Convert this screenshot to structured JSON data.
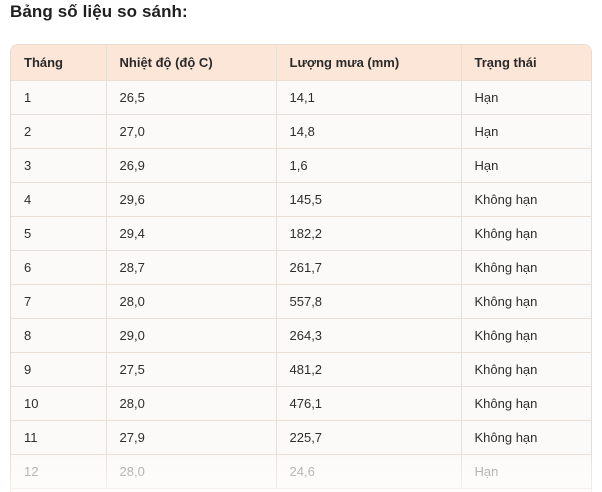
{
  "title": "Bảng số liệu so sánh:",
  "table": {
    "headers": [
      "Tháng",
      "Nhiệt độ (độ C)",
      "Lượng mưa (mm)",
      "Trạng thái"
    ],
    "rows": [
      [
        "1",
        "26,5",
        "14,1",
        "Hạn"
      ],
      [
        "2",
        "27,0",
        "14,8",
        "Hạn"
      ],
      [
        "3",
        "26,9",
        "1,6",
        "Hạn"
      ],
      [
        "4",
        "29,6",
        "145,5",
        "Không hạn"
      ],
      [
        "5",
        "29,4",
        "182,2",
        "Không hạn"
      ],
      [
        "6",
        "28,7",
        "261,7",
        "Không hạn"
      ],
      [
        "7",
        "28,0",
        "557,8",
        "Không hạn"
      ],
      [
        "8",
        "29,0",
        "264,3",
        "Không hạn"
      ],
      [
        "9",
        "27,5",
        "481,2",
        "Không hạn"
      ],
      [
        "10",
        "28,0",
        "476,1",
        "Không hạn"
      ],
      [
        "11",
        "27,9",
        "225,7",
        "Không hạn"
      ],
      [
        "12",
        "28,0",
        "24,6",
        "Hạn"
      ]
    ]
  },
  "colors": {
    "header_bg": "#fbe6d8",
    "row_bg": "#fcfaf9",
    "border": "#e8dfd8"
  }
}
